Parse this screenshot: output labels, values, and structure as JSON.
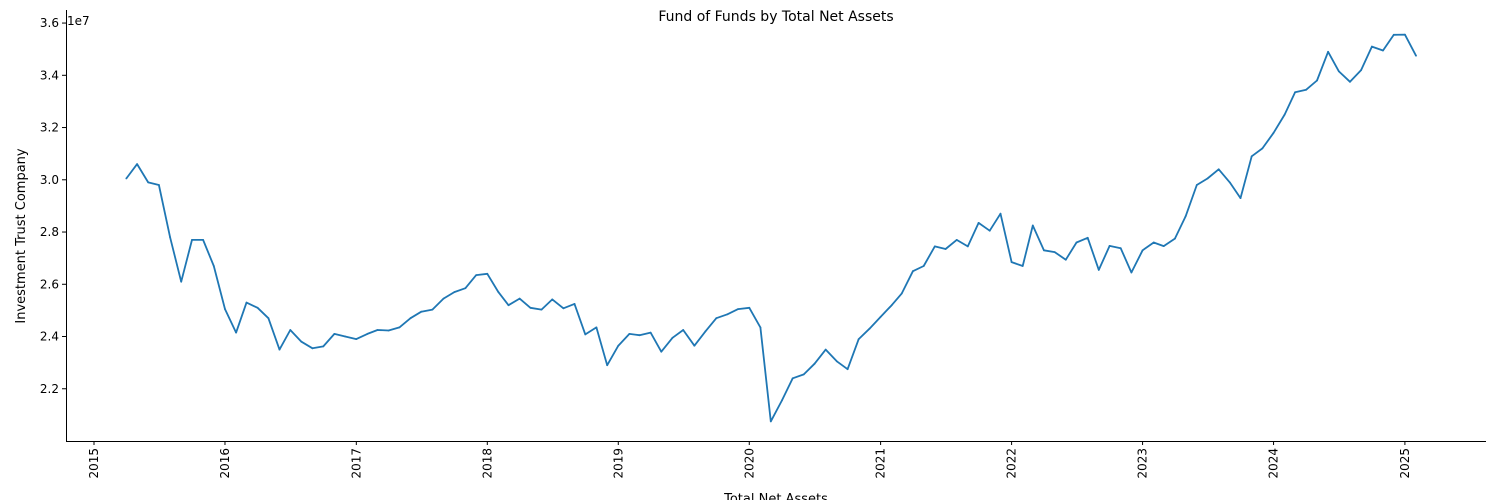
{
  "chart_data": {
    "type": "line",
    "title": "Fund of Funds by Total Net Assets",
    "xlabel": "Total Net Assets",
    "ylabel": "Investment Trust Company",
    "y_offset_label": "1e7",
    "y_scale": 10000000,
    "xlim": [
      "2014-10-15",
      "2025-08-15"
    ],
    "ylim": [
      20000000,
      36500000
    ],
    "x_ticks": [
      {
        "date": "2015-01-01",
        "label": "2015"
      },
      {
        "date": "2016-01-01",
        "label": "2016"
      },
      {
        "date": "2017-01-01",
        "label": "2017"
      },
      {
        "date": "2018-01-01",
        "label": "2018"
      },
      {
        "date": "2019-01-01",
        "label": "2019"
      },
      {
        "date": "2020-01-01",
        "label": "2020"
      },
      {
        "date": "2021-01-01",
        "label": "2021"
      },
      {
        "date": "2022-01-01",
        "label": "2022"
      },
      {
        "date": "2023-01-01",
        "label": "2023"
      },
      {
        "date": "2024-01-01",
        "label": "2024"
      },
      {
        "date": "2025-01-01",
        "label": "2025"
      }
    ],
    "y_ticks": [
      {
        "value": 22000000,
        "label": "2.2"
      },
      {
        "value": 24000000,
        "label": "2.4"
      },
      {
        "value": 26000000,
        "label": "2.6"
      },
      {
        "value": 28000000,
        "label": "2.8"
      },
      {
        "value": 30000000,
        "label": "3.0"
      },
      {
        "value": 32000000,
        "label": "3.2"
      },
      {
        "value": 34000000,
        "label": "3.4"
      },
      {
        "value": 36000000,
        "label": "3.6"
      }
    ],
    "line_color": "#1f77b4",
    "grid": false,
    "series": [
      {
        "x": [
          "2015-04",
          "2015-05",
          "2015-06",
          "2015-07",
          "2015-08",
          "2015-09",
          "2015-10",
          "2015-11",
          "2015-12",
          "2016-01",
          "2016-02",
          "2016-03",
          "2016-04",
          "2016-05",
          "2016-06",
          "2016-07",
          "2016-08",
          "2016-09",
          "2016-10",
          "2016-11",
          "2016-12",
          "2017-01",
          "2017-02",
          "2017-03",
          "2017-04",
          "2017-05",
          "2017-06",
          "2017-07",
          "2017-08",
          "2017-09",
          "2017-10",
          "2017-11",
          "2017-12",
          "2018-01",
          "2018-02",
          "2018-03",
          "2018-04",
          "2018-05",
          "2018-06",
          "2018-07",
          "2018-08",
          "2018-09",
          "2018-10",
          "2018-11",
          "2018-12",
          "2019-01",
          "2019-02",
          "2019-03",
          "2019-04",
          "2019-05",
          "2019-06",
          "2019-07",
          "2019-08",
          "2019-09",
          "2019-10",
          "2019-11",
          "2019-12",
          "2020-01",
          "2020-02",
          "2020-03",
          "2020-04",
          "2020-05",
          "2020-06",
          "2020-07",
          "2020-08",
          "2020-09",
          "2020-10",
          "2020-11",
          "2020-12",
          "2021-01",
          "2021-02",
          "2021-03",
          "2021-04",
          "2021-05",
          "2021-06",
          "2021-07",
          "2021-08",
          "2021-09",
          "2021-10",
          "2021-11",
          "2021-12",
          "2022-01",
          "2022-02",
          "2022-03",
          "2022-04",
          "2022-05",
          "2022-06",
          "2022-07",
          "2022-08",
          "2022-09",
          "2022-10",
          "2022-11",
          "2022-12",
          "2023-01",
          "2023-02",
          "2023-03",
          "2023-04",
          "2023-05",
          "2023-06",
          "2023-07",
          "2023-08",
          "2023-09",
          "2023-10",
          "2023-11",
          "2023-12",
          "2024-01",
          "2024-02",
          "2024-03",
          "2024-04",
          "2024-05",
          "2024-06",
          "2024-07",
          "2024-08",
          "2024-09",
          "2024-10",
          "2024-11",
          "2024-12",
          "2025-01",
          "2025-02"
        ],
        "values": [
          30050000,
          30600000,
          29900000,
          29800000,
          27800000,
          26100000,
          27700000,
          27700000,
          26700000,
          25050000,
          24150000,
          25300000,
          25100000,
          24700000,
          23500000,
          24250000,
          23800000,
          23550000,
          23620000,
          24100000,
          24000000,
          23900000,
          24100000,
          24250000,
          24230000,
          24350000,
          24700000,
          24950000,
          25030000,
          25450000,
          25700000,
          25850000,
          26350000,
          26400000,
          25700000,
          25200000,
          25450000,
          25100000,
          25030000,
          25420000,
          25080000,
          25250000,
          24080000,
          24350000,
          22900000,
          23650000,
          24100000,
          24050000,
          24150000,
          23420000,
          23950000,
          24250000,
          23650000,
          24200000,
          24700000,
          24850000,
          25050000,
          25100000,
          24350000,
          20750000,
          21550000,
          22400000,
          22550000,
          22960000,
          23500000,
          23050000,
          22750000,
          23900000,
          24300000,
          24750000,
          25200000,
          25650000,
          26500000,
          26700000,
          27450000,
          27350000,
          27700000,
          27450000,
          28350000,
          28050000,
          28700000,
          26850000,
          26700000,
          28250000,
          27300000,
          27230000,
          26940000,
          27600000,
          27780000,
          26550000,
          27470000,
          27380000,
          26450000,
          27300000,
          27600000,
          27460000,
          27750000,
          28600000,
          29800000,
          30050000,
          30400000,
          29900000,
          29300000,
          30900000,
          31200000,
          31800000,
          32500000,
          33350000,
          33450000,
          33800000,
          34900000,
          34150000,
          33750000,
          34200000,
          35100000,
          34950000,
          35550000,
          35560000,
          34750000
        ]
      }
    ]
  }
}
